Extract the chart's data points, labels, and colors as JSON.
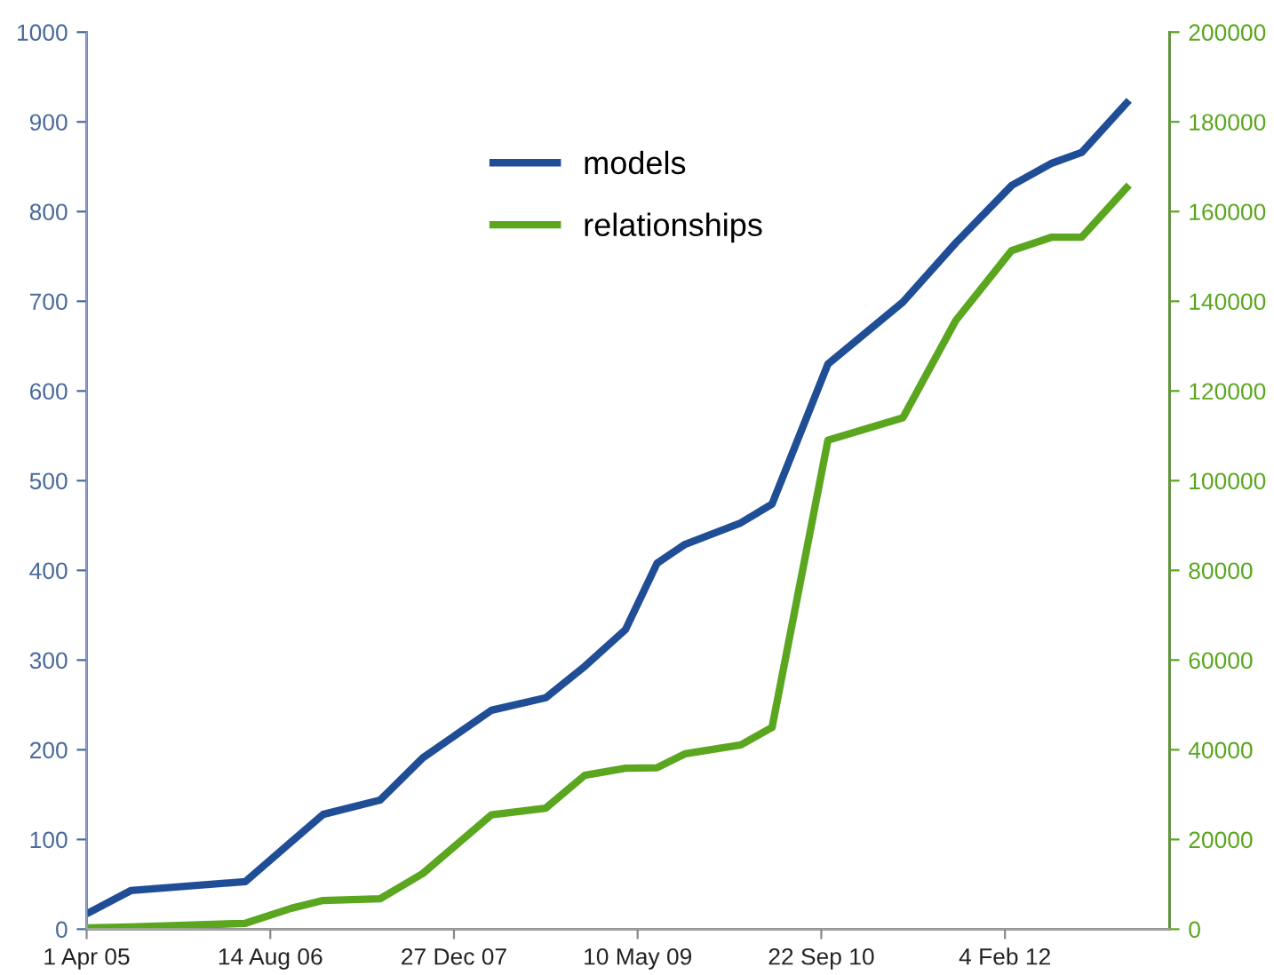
{
  "chart_data": {
    "type": "line",
    "x": [
      "2005-04-10",
      "2005-07-30",
      "2006-06-07",
      "2006-10-12",
      "2007-01-05",
      "2007-06-09",
      "2007-10-03",
      "2008-04-07",
      "2008-09-02",
      "2008-12-17",
      "2009-04-07",
      "2009-07-02",
      "2009-09-16",
      "2010-02-15",
      "2010-05-11",
      "2010-10-10",
      "2011-05-02",
      "2011-09-23",
      "2012-02-22",
      "2012-06-11",
      "2012-08-31",
      "2012-12-31"
    ],
    "series": [
      {
        "name": "models",
        "color": "#1f4e96",
        "values": [
          19,
          43,
          53,
          98,
          128,
          144,
          191,
          244,
          258,
          293,
          334,
          408,
          429,
          453,
          474,
          630,
          699,
          765,
          829,
          854,
          866,
          921
        ]
      },
      {
        "name": "relationships",
        "color": "#5aa61e",
        "axis": "y2",
        "values": [
          300,
          500,
          1300,
          4700,
          6400,
          6800,
          12400,
          25500,
          27000,
          34300,
          35900,
          36000,
          39100,
          41100,
          45000,
          109000,
          114000,
          135700,
          151300,
          154300,
          154300,
          165300
        ]
      }
    ],
    "xlim": [
      "2005-04-01",
      "2013-04-27"
    ],
    "xticks": [
      {
        "value": "2005-04-01",
        "label": "1 Apr 05"
      },
      {
        "value": "2006-08-14",
        "label": "14 Aug 06"
      },
      {
        "value": "2007-12-27",
        "label": "27 Dec 07"
      },
      {
        "value": "2009-05-10",
        "label": "10 May 09"
      },
      {
        "value": "2010-09-22",
        "label": "22 Sep 10"
      },
      {
        "value": "2012-02-04",
        "label": "4 Feb 12"
      }
    ],
    "ylim": [
      0,
      1000
    ],
    "yticks": [
      0,
      100,
      200,
      300,
      400,
      500,
      600,
      700,
      800,
      900,
      1000
    ],
    "y2lim": [
      0,
      200000
    ],
    "y2ticks": [
      0,
      20000,
      40000,
      60000,
      80000,
      100000,
      120000,
      140000,
      160000,
      180000,
      200000
    ],
    "grid": false,
    "legend": "top",
    "marker": "none",
    "line_style": "solid"
  }
}
